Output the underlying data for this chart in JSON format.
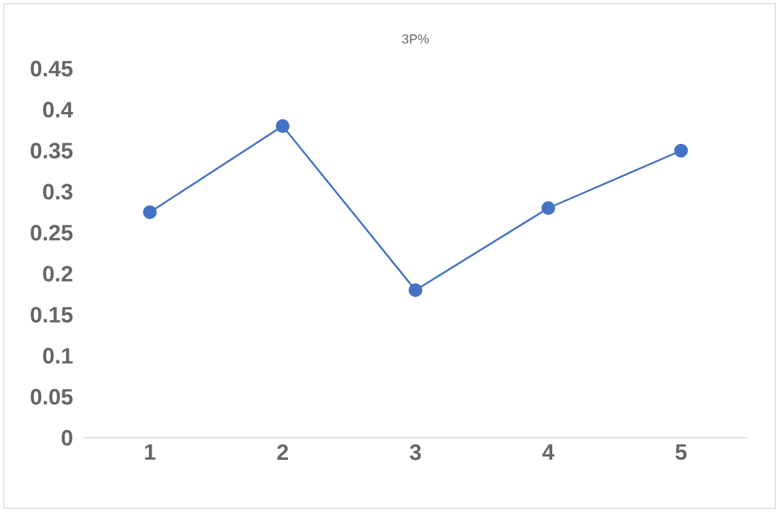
{
  "chart_data": {
    "type": "line",
    "title": "3P%",
    "categories": [
      "1",
      "2",
      "3",
      "4",
      "5"
    ],
    "series": [
      {
        "color": "#4472c4",
        "values": [
          0.275,
          0.38,
          0.18,
          0.28,
          0.35
        ]
      }
    ],
    "ylim": [
      0,
      0.45
    ],
    "yticks": [
      0,
      0.05,
      0.1,
      0.15,
      0.2,
      0.25,
      0.3,
      0.35,
      0.4,
      0.45
    ],
    "marker": "circle",
    "line_style": "solid"
  }
}
